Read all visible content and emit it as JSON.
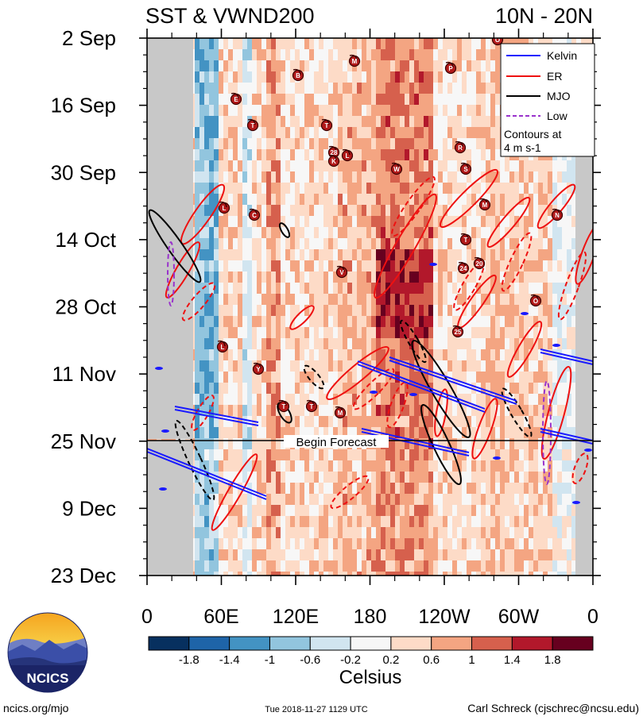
{
  "header": {
    "title_left": "SST & VWND200",
    "title_right": "10N - 20N"
  },
  "chart_data": {
    "type": "heatmap",
    "title": "SST & VWND200",
    "subtitle": "10N - 20N",
    "x_tick_labels": [
      "0",
      "60E",
      "120E",
      "180",
      "120W",
      "60W",
      "0"
    ],
    "x_range_deg_east": [
      0,
      360
    ],
    "y_tick_labels": [
      "2 Sep",
      "16 Sep",
      "30 Sep",
      "14 Oct",
      "28 Oct",
      "11 Nov",
      "25 Nov",
      "9 Dec",
      "23 Dec"
    ],
    "y_range": [
      "2 Sep",
      "23 Dec"
    ],
    "forecast_start": "25 Nov",
    "annotation": "Begin Forecast",
    "legend": {
      "placement": "top-right",
      "entries": [
        {
          "label": "Kelvin",
          "color": "#1a1aff"
        },
        {
          "label": "ER",
          "color": "#ee1111"
        },
        {
          "label": "MJO",
          "color": "#000000"
        },
        {
          "label": "Low",
          "color": "#9933cc"
        }
      ],
      "note_line1": "Contours at",
      "note_line2": "4 m s-1"
    },
    "colorbar": {
      "label": "Celsius",
      "tick_labels": [
        "-1.8",
        "-1.4",
        "-1",
        "-0.6",
        "-0.2",
        "0.2",
        "0.6",
        "1",
        "1.4",
        "1.8"
      ],
      "colors": [
        "#07305f",
        "#1e64a8",
        "#4393c3",
        "#92c5de",
        "#d1e5f0",
        "#f7f7f7",
        "#fddbc7",
        "#f4a582",
        "#d6604d",
        "#b2182b",
        "#67001f"
      ]
    },
    "storm_markers": [
      "M",
      "B",
      "E",
      "T",
      "T",
      "28",
      "K",
      "L",
      "W",
      "P",
      "O",
      "R",
      "S",
      "M",
      "T",
      "N",
      "24",
      "20",
      "V",
      "L",
      "C",
      "25",
      "O",
      "T",
      "T",
      "M",
      "L",
      "Y"
    ]
  },
  "footer": {
    "logo_text": "NCICS",
    "url": "ncics.org/mjo",
    "timestamp": "Tue 2018-11-27 1129 UTC",
    "author": "Carl Schreck (cjschrec@ncsu.edu)"
  }
}
